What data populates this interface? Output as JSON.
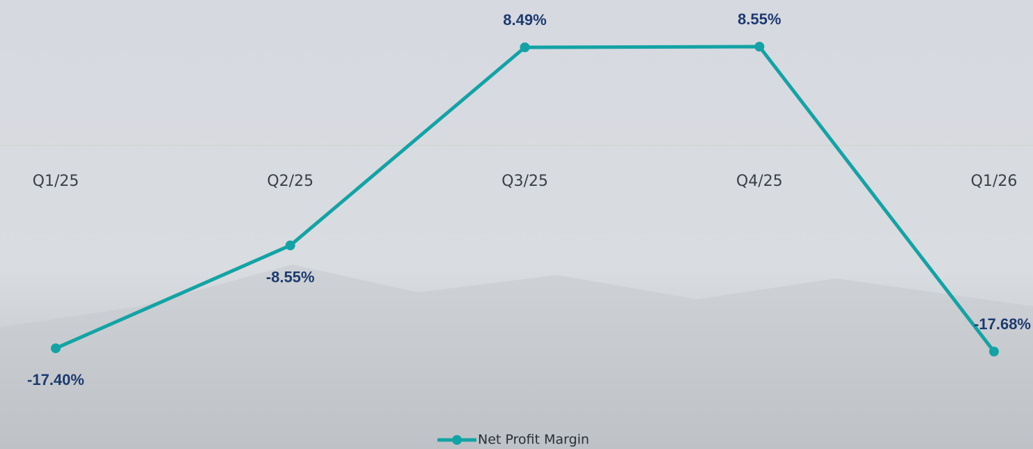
{
  "chart_data": {
    "type": "line",
    "categories": [
      "Q1/25",
      "Q2/25",
      "Q3/25",
      "Q4/25",
      "Q1/26"
    ],
    "series": [
      {
        "name": "Net Profit Margin",
        "color": "#13a3a5",
        "values": [
          -17.4,
          -8.55,
          8.49,
          8.55,
          -17.68
        ],
        "value_labels": [
          "-17.40%",
          "-8.55%",
          "8.49%",
          "8.55%",
          "-17.68%"
        ]
      }
    ]
  }
}
